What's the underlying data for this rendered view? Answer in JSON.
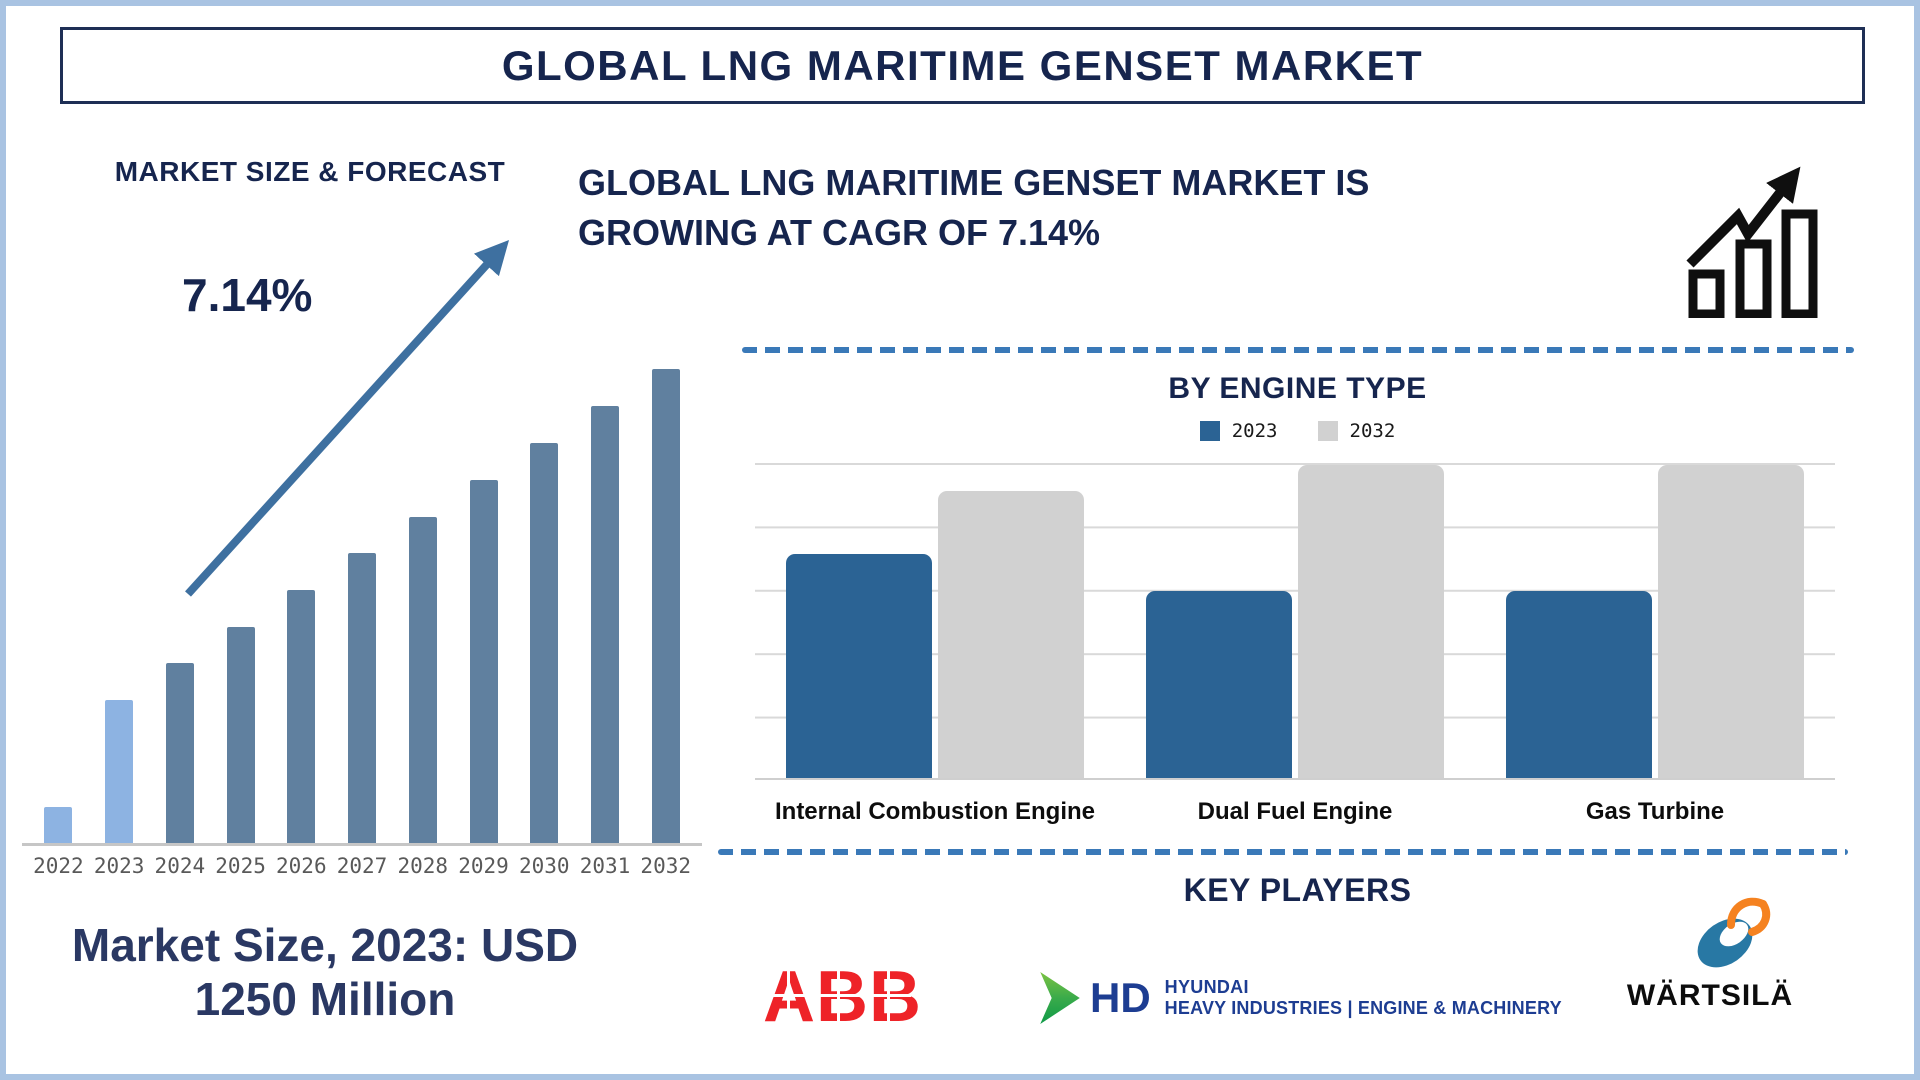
{
  "title": "GLOBAL LNG MARITIME GENSET MARKET",
  "forecast": {
    "heading": "MARKET SIZE & FORECAST",
    "cagr_label": "7.14%",
    "caption": "Market Size, 2023: USD 1250 Million"
  },
  "growth": {
    "headline": "GLOBAL LNG MARITIME GENSET MARKET IS GROWING AT CAGR OF 7.14%",
    "icon": "growth-bars-arrow-icon"
  },
  "engine_section": {
    "heading": "BY ENGINE TYPE"
  },
  "key_players": {
    "heading": "KEY PLAYERS",
    "players": [
      {
        "name": "ABB",
        "logo_text": "ABB",
        "color": "#ee2328"
      },
      {
        "name": "HD Hyundai Heavy Industries",
        "prefix": "HD",
        "line1": "HYUNDAI",
        "line2": "HEAVY INDUSTRIES | ENGINE & MACHINERY",
        "color": "#1d3d92",
        "mark": "green-chevron-icon"
      },
      {
        "name": "Wärtsilä",
        "logo_text": "WÄRTSILÄ",
        "mark": "swirl-icon"
      }
    ]
  },
  "colors": {
    "frame_border": "#a9c3e2",
    "navy_text": "#16254e",
    "title_border": "#1e2f55",
    "dashed_line": "#3a79b8",
    "arrow": "#3e70a0",
    "axis_line": "#c6c6c6",
    "gridline": "#d9d9d9",
    "year_labels": "#595959"
  },
  "chart_data": [
    {
      "type": "bar",
      "title": "MARKET SIZE & FORECAST",
      "categories": [
        "2022",
        "2023",
        "2024",
        "2025",
        "2026",
        "2027",
        "2028",
        "2029",
        "2030",
        "2031",
        "2032"
      ],
      "values": [
        8,
        30.5,
        38.2,
        45.8,
        53.6,
        61.3,
        68.9,
        76.7,
        84.5,
        92.2,
        100
      ],
      "value_note": "relative bar heights as % of tallest bar (2032); no value axis shown",
      "annotations": [
        "7.14%",
        "Market Size, 2023: USD 1250 Million"
      ],
      "highlight_years": [
        "2022",
        "2023"
      ],
      "bar_colors": {
        "highlight": "#8db3e2",
        "default": "#60809f"
      },
      "xlabel": "",
      "ylabel": "",
      "grid": false,
      "legend": false
    },
    {
      "type": "bar",
      "title": "BY ENGINE TYPE",
      "categories": [
        "Internal Combustion Engine",
        "Dual Fuel Engine",
        "Gas Turbine"
      ],
      "series": [
        {
          "name": "2023",
          "color": "#2b6394",
          "values": [
            71,
            59.5,
            59.5
          ]
        },
        {
          "name": "2032",
          "color": "#d1d1d1",
          "values": [
            91,
            99.5,
            99.5
          ]
        }
      ],
      "value_note": "relative bar heights as % of plot height; no value axis shown",
      "xlabel": "",
      "ylabel": "",
      "grid": true,
      "legend": "top"
    }
  ]
}
